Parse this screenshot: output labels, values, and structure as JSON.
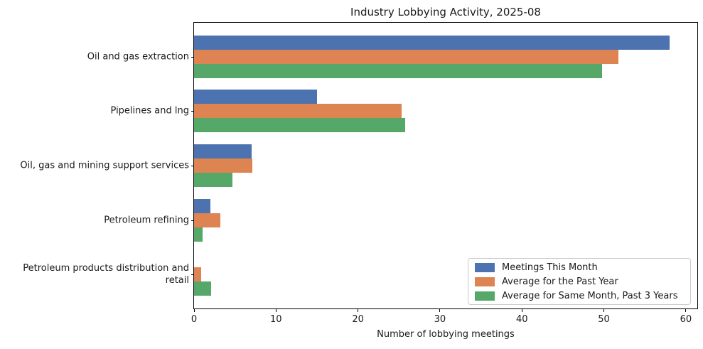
{
  "chart_data": {
    "type": "bar",
    "orientation": "horizontal",
    "title": "Industry Lobbying Activity, 2025-08",
    "xlabel": "Number of lobbying meetings",
    "ylabel": "",
    "categories": [
      "Oil and gas extraction",
      "Pipelines and lng",
      "Oil, gas and mining support services",
      "Petroleum refining",
      "Petroleum products distribution and retail"
    ],
    "series": [
      {
        "name": "Meetings This Month",
        "color": "#4C72B0",
        "values": [
          58,
          15,
          7,
          2,
          0
        ]
      },
      {
        "name": "Average for the Past Year",
        "color": "#DD8452",
        "values": [
          51.8,
          25.3,
          7.1,
          3.2,
          0.9
        ]
      },
      {
        "name": "Average for Same Month, Past 3 Years",
        "color": "#55A868",
        "values": [
          49.8,
          25.8,
          4.7,
          1,
          2.1
        ]
      }
    ],
    "xlim": [
      0,
      61.4
    ],
    "xticks": [
      0,
      10,
      20,
      30,
      40,
      50,
      60
    ],
    "grid": false,
    "legend_position": "lower right",
    "background_color": "#ffffff",
    "text_color": "#1a1a1a"
  }
}
